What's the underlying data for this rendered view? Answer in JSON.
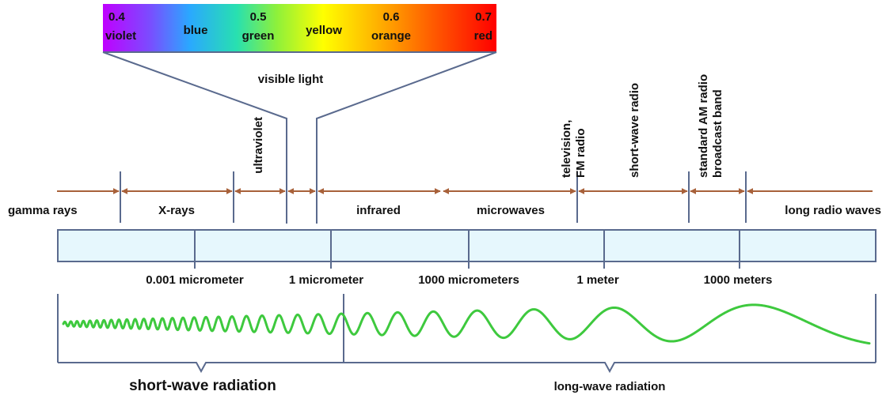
{
  "colors": {
    "arrow": "#a8613a",
    "line": "#5a6a8e",
    "wave": "#3ec93e",
    "scale_fill": "#e6f7fd"
  },
  "visible_spectrum": {
    "ticks": [
      {
        "value": "0.4",
        "name": "violet"
      },
      {
        "value": "0.5",
        "name": "green"
      },
      {
        "value": "0.6",
        "name": "orange"
      },
      {
        "value": "0.7",
        "name": "red"
      }
    ],
    "between": [
      "blue",
      "yellow"
    ],
    "label": "visible light"
  },
  "bands": [
    {
      "key": "gamma",
      "label": "gamma rays"
    },
    {
      "key": "xrays",
      "label": "X-rays"
    },
    {
      "key": "ultraviolet",
      "label": "ultraviolet"
    },
    {
      "key": "infrared",
      "label": "infrared"
    },
    {
      "key": "microwaves",
      "label": "microwaves"
    },
    {
      "key": "tv",
      "label_lines": [
        "television,",
        "FM radio"
      ]
    },
    {
      "key": "shortwave",
      "label": "short-wave radio"
    },
    {
      "key": "am",
      "label_lines": [
        "standard AM radio",
        "broadcast band"
      ]
    },
    {
      "key": "longradio",
      "label": "long radio waves"
    }
  ],
  "scale_labels": [
    "0.001 micrometer",
    "1 micrometer",
    "1000 micrometers",
    "1 meter",
    "1000 meters"
  ],
  "radiation": {
    "short": "short-wave radiation",
    "long": "long-wave radiation"
  }
}
